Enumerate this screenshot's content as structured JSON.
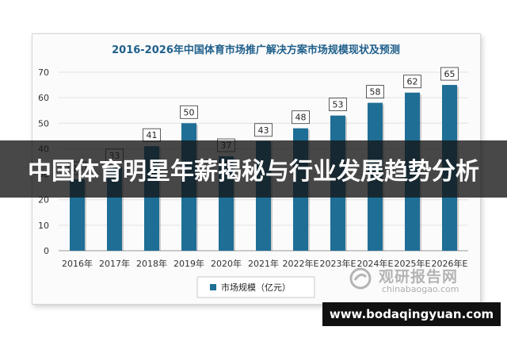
{
  "chart_data": {
    "type": "bar",
    "title": "2016-2026年中国体育市场推广解决方案市场规模现状及预测",
    "categories": [
      "2016年",
      "2017年",
      "2018年",
      "2019年",
      "2020年",
      "2021年",
      "2022年E",
      "2023年E",
      "2024年E",
      "2025年E",
      "2026年E"
    ],
    "series": [
      {
        "name": "市场规模（亿元）",
        "values": [
          28,
          33,
          41,
          50,
          37,
          43,
          48,
          53,
          58,
          62,
          65
        ],
        "color": "#1f6e96"
      }
    ],
    "ylim": [
      0,
      70
    ],
    "yticks": [
      0,
      10,
      20,
      30,
      40,
      50,
      60,
      70
    ],
    "grid": true,
    "legend": "bottom",
    "data_labels": true
  },
  "overlay": {
    "headline": "中国体育明星年薪揭秘与行业发展趋势分析",
    "url": "www.bodaqingyuan.com"
  },
  "watermark": {
    "cn": "观研报告网",
    "en": "chinabaogao.com"
  }
}
